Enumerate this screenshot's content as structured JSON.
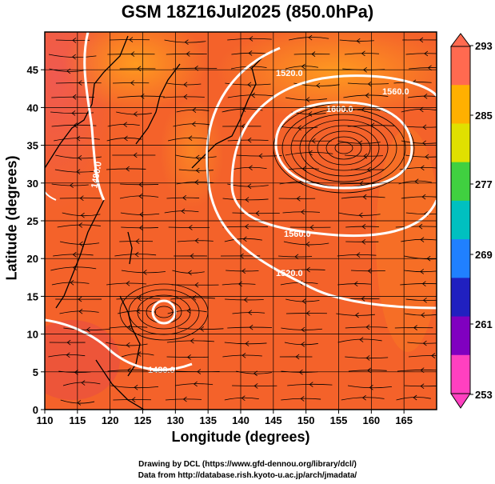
{
  "title": "GSM 18Z16Jul2025 (850.0hPa)",
  "x_axis": {
    "label": "Longitude (degrees)",
    "ticks": [
      "110",
      "115",
      "120",
      "125",
      "130",
      "135",
      "140",
      "145",
      "150",
      "155",
      "160",
      "165"
    ]
  },
  "y_axis": {
    "label": "Latitude  (degrees)",
    "ticks": [
      "0",
      "5",
      "10",
      "15",
      "20",
      "25",
      "30",
      "35",
      "40",
      "45"
    ]
  },
  "colorbar": {
    "ticks": [
      "293",
      "285",
      "277",
      "269",
      "261",
      "253"
    ],
    "colors": [
      "#ff6a50",
      "#ffb000",
      "#e0e000",
      "#40d040",
      "#00c0c0",
      "#2080ff",
      "#2020c0",
      "#8000c0",
      "#ff40c0"
    ]
  },
  "contour_labels": [
    "1520.0",
    "1560.0",
    "1600.0",
    "1560.0",
    "1520.0",
    "1480.0",
    "1480.0"
  ],
  "credits": [
    "Drawing by DCL (https://www.gfd-dennou.org/library/dcl/)",
    "Data from http://database.rish.kyoto-u.ac.jp/arch/jmadata/"
  ]
}
